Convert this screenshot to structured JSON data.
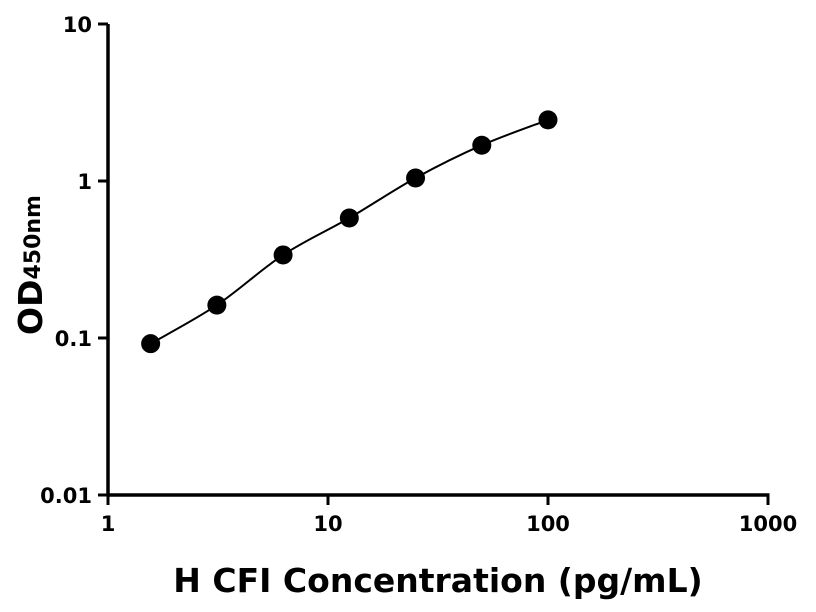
{
  "chart_data": {
    "type": "scatter",
    "title": "",
    "xlabel": "H CFI Concentration (pg/mL)",
    "ylabel": "OD",
    "ylabel_subscript": "450nm",
    "xscale": "log",
    "yscale": "log",
    "xlim": [
      1,
      1000
    ],
    "ylim": [
      0.01,
      10
    ],
    "x_ticks": [
      "1",
      "10",
      "100",
      "1000"
    ],
    "y_ticks": [
      "0.01",
      "0.1",
      "1",
      "10"
    ],
    "grid": false,
    "fit_curve": true,
    "series": [
      {
        "x": [
          1.5625,
          3.125,
          6.25,
          12.5,
          25,
          50,
          100
        ],
        "y": [
          0.092,
          0.162,
          0.338,
          0.581,
          1.045,
          1.69,
          2.45
        ]
      }
    ],
    "colors": {
      "marker": "#000000",
      "line": "#000000",
      "axis": "#000000"
    }
  }
}
